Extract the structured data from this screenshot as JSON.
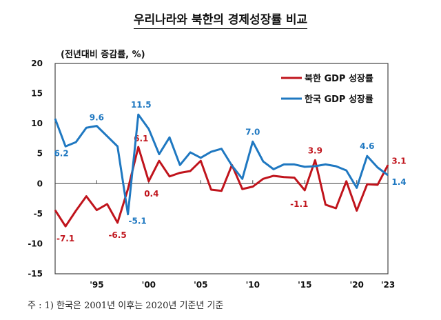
{
  "chart_data": {
    "type": "line",
    "title": "우리나라와 북한의 경제성장률 비교",
    "ylabel": "(전년대비 증감률, %)",
    "ylim": [
      -15,
      20
    ],
    "yticks": [
      20,
      15,
      10,
      5,
      0,
      -5,
      -10,
      -15
    ],
    "xticks": [
      {
        "year": 1995,
        "label": "'95"
      },
      {
        "year": 2000,
        "label": "'00"
      },
      {
        "year": 2005,
        "label": "'05"
      },
      {
        "year": 2010,
        "label": "'10"
      },
      {
        "year": 2015,
        "label": "'15"
      },
      {
        "year": 2020,
        "label": "'20"
      },
      {
        "year": 2023,
        "label": "'23"
      }
    ],
    "x": [
      1991,
      1992,
      1993,
      1994,
      1995,
      1996,
      1997,
      1998,
      1999,
      2000,
      2001,
      2002,
      2003,
      2004,
      2005,
      2006,
      2007,
      2008,
      2009,
      2010,
      2011,
      2012,
      2013,
      2014,
      2015,
      2016,
      2017,
      2018,
      2019,
      2020,
      2021,
      2022,
      2023
    ],
    "legend_position": "top-right",
    "series": [
      {
        "name": "북한 GDP 성장률",
        "color": "#c0141c",
        "values": [
          -4.4,
          -7.1,
          -4.5,
          -2.1,
          -4.4,
          -3.4,
          -6.5,
          -0.9,
          6.1,
          0.4,
          3.8,
          1.2,
          1.8,
          2.1,
          3.8,
          -1.0,
          -1.2,
          3.1,
          -0.9,
          -0.5,
          0.8,
          1.3,
          1.1,
          1.0,
          -1.1,
          3.9,
          -3.5,
          -4.1,
          0.4,
          -4.5,
          -0.1,
          -0.2,
          3.1
        ],
        "labels": [
          {
            "year": 1992,
            "text": "-7.1",
            "dx": 0,
            "dy": 22
          },
          {
            "year": 1997,
            "text": "-6.5",
            "dx": 0,
            "dy": 22
          },
          {
            "year": 1999,
            "text": "6.1",
            "dx": 4,
            "dy": -8
          },
          {
            "year": 2000,
            "text": "0.4",
            "dx": 4,
            "dy": 22
          },
          {
            "year": 2015,
            "text": "-1.1",
            "dx": -8,
            "dy": 24
          },
          {
            "year": 2016,
            "text": "3.9",
            "dx": 0,
            "dy": -10
          },
          {
            "year": 2023,
            "text": "3.1",
            "dx": 16,
            "dy": -2
          }
        ]
      },
      {
        "name": "한국 GDP 성장률",
        "color": "#1f78c1",
        "values": [
          10.8,
          6.2,
          6.9,
          9.3,
          9.6,
          7.9,
          6.2,
          -5.1,
          11.5,
          9.1,
          4.9,
          7.7,
          3.1,
          5.2,
          4.3,
          5.3,
          5.8,
          3.0,
          0.8,
          7.0,
          3.7,
          2.4,
          3.2,
          3.2,
          2.8,
          2.9,
          3.2,
          2.9,
          2.2,
          -0.7,
          4.6,
          2.7,
          1.4
        ],
        "labels": [
          {
            "year": 1992,
            "text": "6.2",
            "dx": -6,
            "dy": 14
          },
          {
            "year": 1995,
            "text": "9.6",
            "dx": 0,
            "dy": -8
          },
          {
            "year": 1998,
            "text": "-5.1",
            "dx": 14,
            "dy": 14
          },
          {
            "year": 1999,
            "text": "11.5",
            "dx": 4,
            "dy": -10
          },
          {
            "year": 2010,
            "text": "7.0",
            "dx": 0,
            "dy": -10
          },
          {
            "year": 2021,
            "text": "4.6",
            "dx": 0,
            "dy": -10
          },
          {
            "year": 2023,
            "text": "1.4",
            "dx": 16,
            "dy": 14
          }
        ]
      }
    ]
  },
  "footnote": "주 : 1) 한국은 2001년 이후는 2020년 기준년 기준"
}
